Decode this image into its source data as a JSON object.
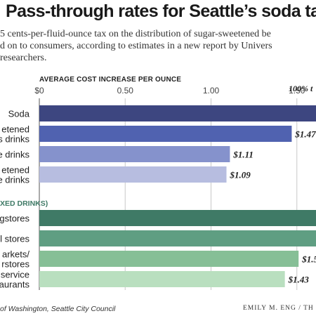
{
  "header": {
    "title": "Pass-through rates for Seattle’s soda tax",
    "subtitle_lines": [
      "5 cents-per-fluid-ounce tax on the distribution of sugar-sweetened be",
      "d on to consumers, according to estimates in a new report by Univers",
      "researchers."
    ]
  },
  "footer": {
    "source": "of Washington, Seattle City Council",
    "credit": "EMILY M. ENG / TH"
  },
  "chart_data": {
    "type": "bar",
    "orientation": "horizontal",
    "axis_title": "AVERAGE COST INCREASE PER OUNCE",
    "reference_label": "100% t",
    "xlim": [
      0,
      1.75
    ],
    "ticks": [
      {
        "value": 0,
        "label": "$0"
      },
      {
        "value": 0.5,
        "label": "0.50"
      },
      {
        "value": 1.0,
        "label": "1.00"
      },
      {
        "value": 1.5,
        "label": "1.50"
      }
    ],
    "grid": true,
    "groups": [
      {
        "label": "",
        "bars": [
          {
            "category_lines": [
              "Soda"
            ],
            "value": 1.75,
            "value_label": "",
            "color": "#3d4680"
          },
          {
            "category_lines": [
              "etened",
              "s drinks"
            ],
            "value": 1.47,
            "value_label": "$1.47",
            "color": "#5062b0"
          },
          {
            "category_lines": [
              "e drinks"
            ],
            "value": 1.11,
            "value_label": "$1.11",
            "color": "#8592cc"
          },
          {
            "category_lines": [
              "etened",
              "e drinks"
            ],
            "value": 1.09,
            "value_label": "$1.09",
            "color": "#b7bde0"
          }
        ]
      },
      {
        "label": "XED DRINKS)",
        "bars": [
          {
            "category_lines": [
              "gstores"
            ],
            "value": 1.75,
            "value_label": "",
            "color": "#3f7a66"
          },
          {
            "category_lines": [
              "l stores"
            ],
            "value": 1.75,
            "value_label": "",
            "color": "#5f9e82"
          },
          {
            "category_lines": [
              "arkets/",
              "rstores"
            ],
            "value": 1.51,
            "value_label": "$1.5",
            "color": "#86bf96"
          },
          {
            "category_lines": [
              "service",
              "aurants"
            ],
            "value": 1.43,
            "value_label": "$1.43",
            "color": "#b9dfbf"
          }
        ]
      }
    ]
  }
}
